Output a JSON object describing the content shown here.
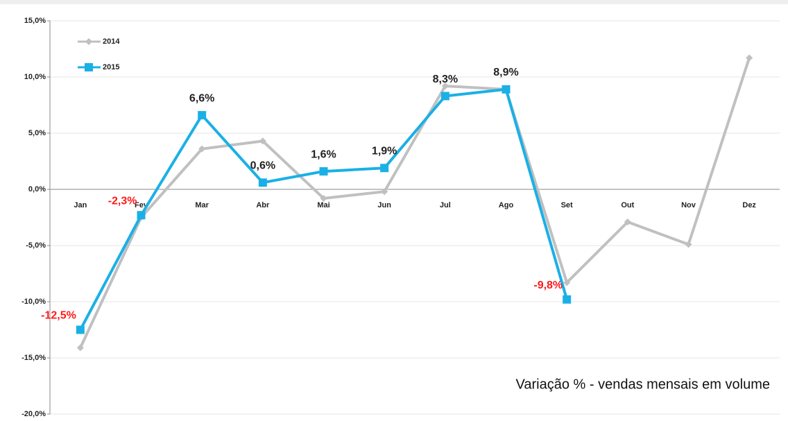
{
  "chart_data": {
    "type": "line",
    "annotation": "Variação % - vendas mensais em volume",
    "categories": [
      "Jan",
      "Fev",
      "Mar",
      "Abr",
      "Mai",
      "Jun",
      "Jul",
      "Ago",
      "Set",
      "Out",
      "Nov",
      "Dez"
    ],
    "series": [
      {
        "name": "2014",
        "color": "#c0c0c0",
        "marker": "diamond",
        "values": [
          -14.1,
          -2.5,
          3.6,
          4.3,
          -0.8,
          -0.2,
          9.2,
          8.9,
          -8.3,
          -2.9,
          -4.9,
          11.7
        ]
      },
      {
        "name": "2015",
        "color": "#1ab0e6",
        "marker": "square",
        "values": [
          -12.5,
          -2.3,
          6.6,
          0.6,
          1.6,
          1.9,
          8.3,
          8.9,
          -9.8,
          null,
          null,
          null
        ],
        "value_labels": [
          "-12,5%",
          "-2,3%",
          "6,6%",
          "0,6%",
          "1,6%",
          "1,9%",
          "8,3%",
          "8,9%",
          "-9,8%",
          null,
          null,
          null
        ]
      }
    ],
    "ylim": [
      -20,
      15
    ],
    "yticks": [
      {
        "value": -20,
        "label": "-20,0%"
      },
      {
        "value": -15,
        "label": "-15,0%"
      },
      {
        "value": -10,
        "label": "-10,0%"
      },
      {
        "value": -5,
        "label": "-5,0%"
      },
      {
        "value": 0,
        "label": "0,0%"
      },
      {
        "value": 5,
        "label": "5,0%"
      },
      {
        "value": 10,
        "label": "10,0%"
      },
      {
        "value": 15,
        "label": "15,0%"
      }
    ],
    "grid": true,
    "legend": "upper left"
  }
}
